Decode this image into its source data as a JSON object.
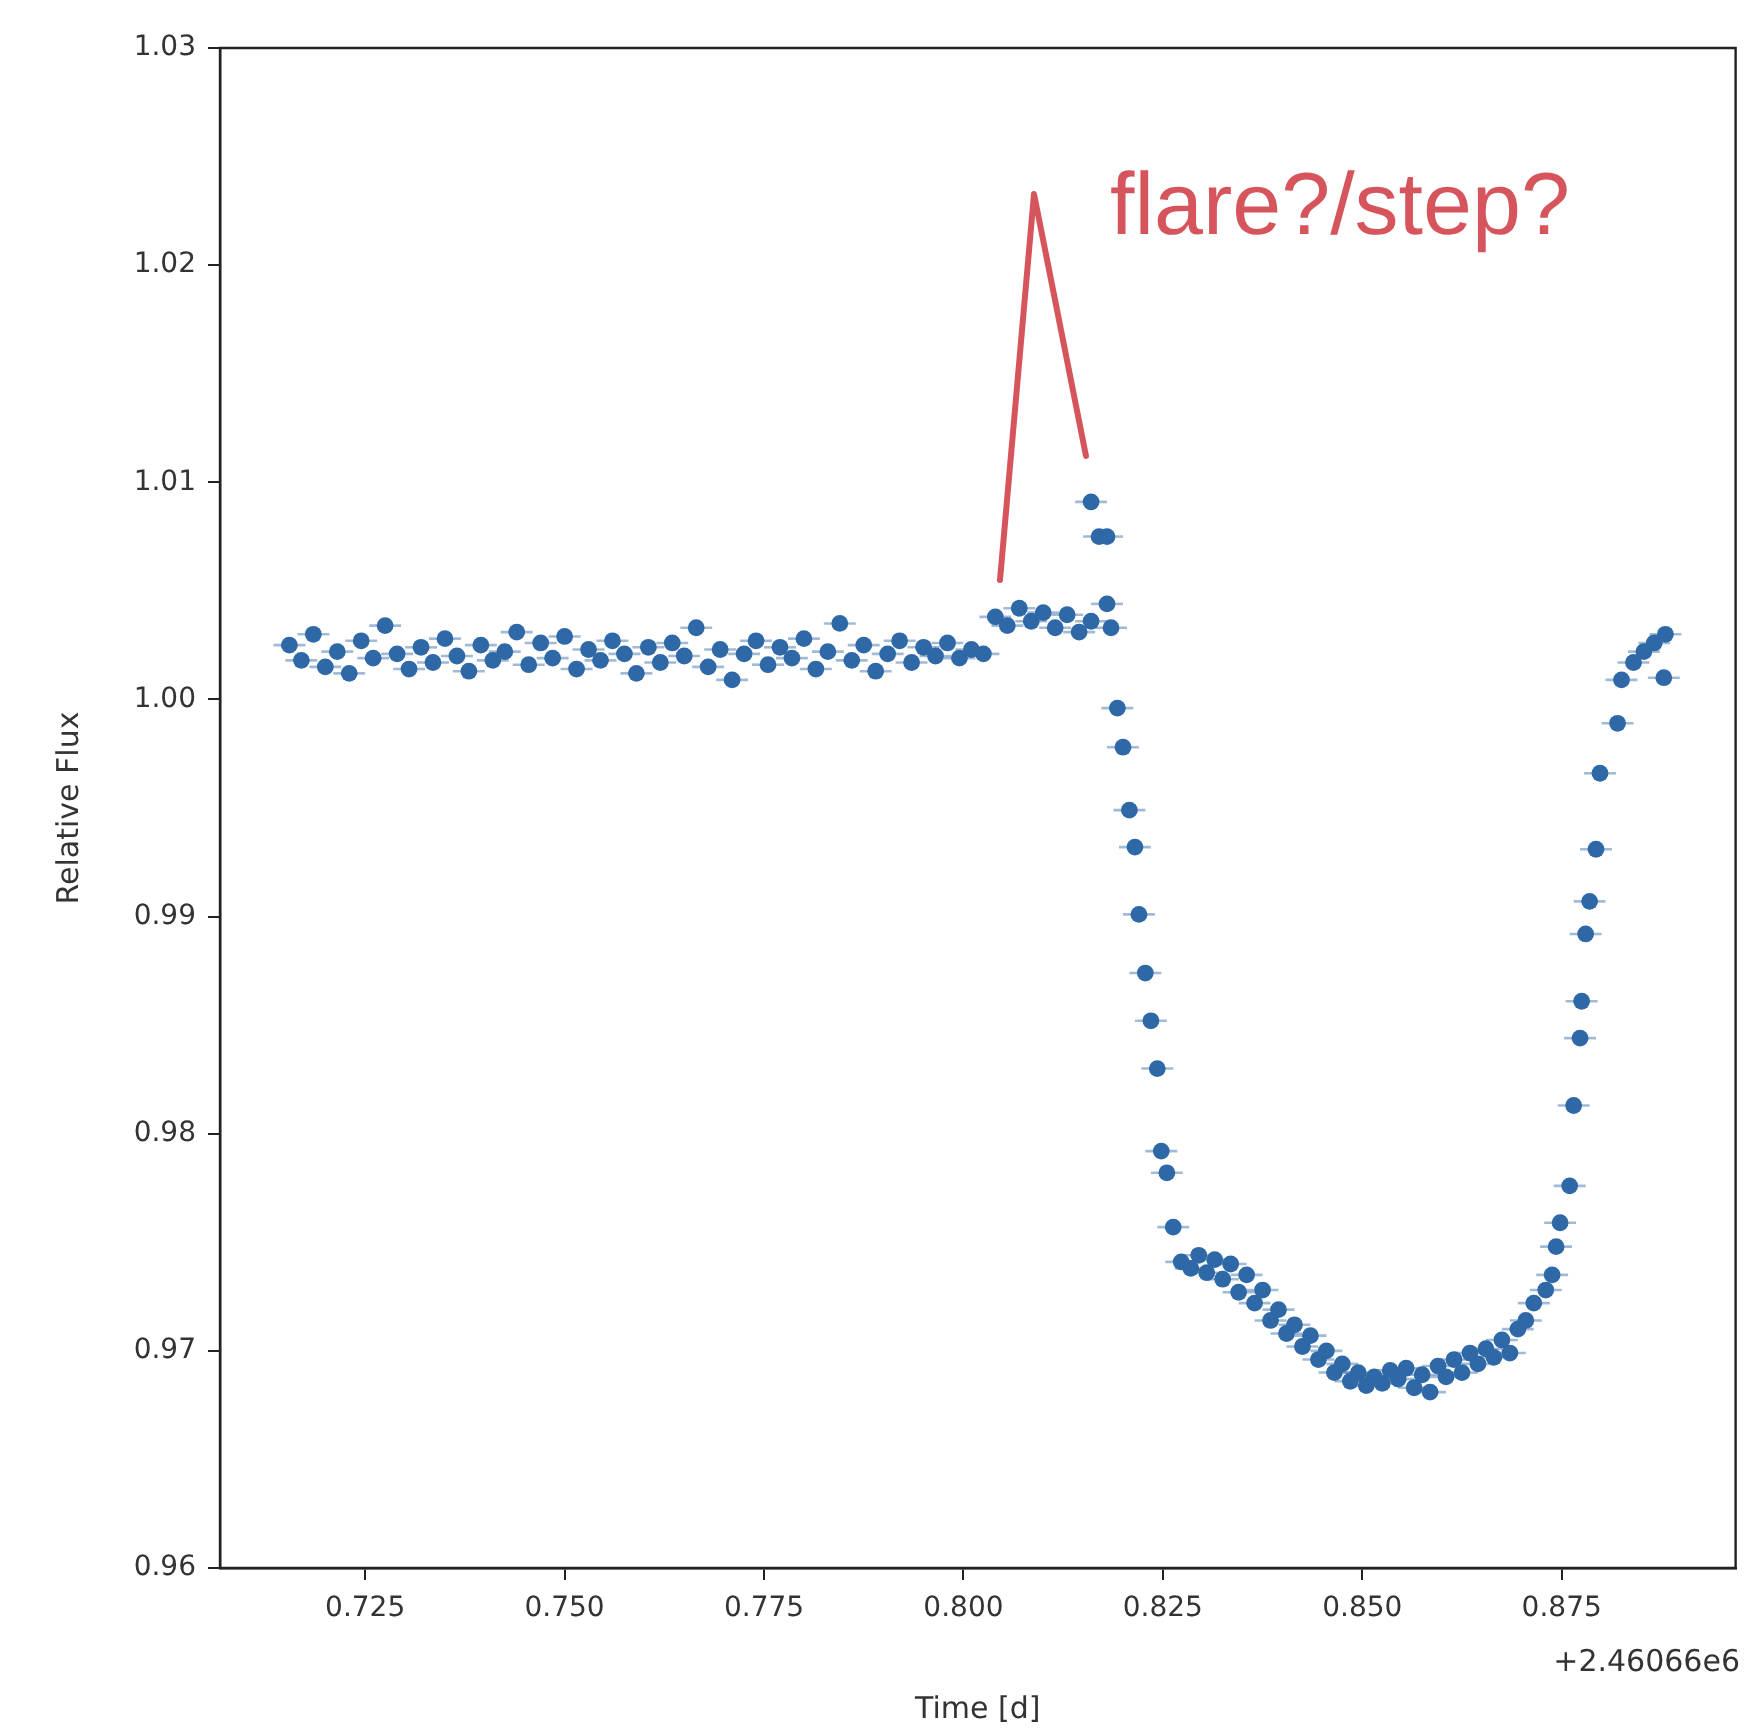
{
  "chart_data": {
    "type": "scatter",
    "xlabel": "Time [d]",
    "ylabel": "Relative Flux",
    "annotations": [
      "flare?/step?",
      "+2.46066e6"
    ],
    "xlim": [
      0.7068,
      0.8968
    ],
    "ylim": [
      0.96,
      1.03
    ],
    "xticks": [
      0.725,
      {
        "value": 0.75,
        "label": "0.750"
      },
      0.775,
      {
        "value": 0.8,
        "label": "0.800"
      },
      0.825,
      {
        "value": 0.85,
        "label": "0.850"
      },
      0.875
    ],
    "yticks": [
      0.96,
      0.97,
      0.98,
      0.99,
      {
        "value": 1,
        "label": "1.00"
      },
      1.01,
      1.02,
      1.03
    ],
    "grid": false,
    "legend": false,
    "marker": "circle",
    "series": [
      {
        "color": "#2f68a6",
        "x": [
          0.7155,
          0.717,
          0.7185,
          0.72,
          0.7215,
          0.723,
          0.7245,
          0.726,
          0.7275,
          0.729,
          0.7305,
          0.732,
          0.7335,
          0.735,
          0.7365,
          0.738,
          0.7395,
          0.741,
          0.7425,
          0.744,
          0.7455,
          0.747,
          0.7485,
          0.75,
          0.7515,
          0.753,
          0.7545,
          0.756,
          0.7575,
          0.759,
          0.7605,
          0.762,
          0.7635,
          0.765,
          0.7665,
          0.768,
          0.7695,
          0.771,
          0.7725,
          0.774,
          0.7755,
          0.777,
          0.7785,
          0.78,
          0.7815,
          0.783,
          0.7845,
          0.786,
          0.7875,
          0.789,
          0.7905,
          0.792,
          0.7935,
          0.795,
          0.7965,
          0.798,
          0.7995,
          0.801,
          0.8025,
          0.804,
          0.8055,
          0.807,
          0.8085,
          0.81,
          0.8115,
          0.813,
          0.8145,
          0.816,
          0.816,
          0.817,
          0.818,
          0.818,
          0.8185,
          0.8193,
          0.82,
          0.8208,
          0.8215,
          0.822,
          0.8228,
          0.8235,
          0.8243,
          0.8248,
          0.8255,
          0.8263,
          0.8273,
          0.8285,
          0.8295,
          0.8305,
          0.8315,
          0.8325,
          0.8335,
          0.8345,
          0.8355,
          0.8365,
          0.8375,
          0.8385,
          0.8395,
          0.8405,
          0.8415,
          0.8425,
          0.8435,
          0.8445,
          0.8455,
          0.8465,
          0.8475,
          0.8485,
          0.8495,
          0.8505,
          0.8515,
          0.8525,
          0.8535,
          0.8545,
          0.8555,
          0.8565,
          0.8575,
          0.8585,
          0.8595,
          0.8605,
          0.8615,
          0.8625,
          0.8635,
          0.8645,
          0.8655,
          0.8665,
          0.8675,
          0.8685,
          0.8695,
          0.8705,
          0.8715,
          0.873,
          0.8738,
          0.8743,
          0.8748,
          0.876,
          0.8765,
          0.8773,
          0.8775,
          0.878,
          0.8785,
          0.8793,
          0.8798,
          0.882,
          0.8825,
          0.884,
          0.8853,
          0.8866,
          0.888,
          0.8878
        ],
        "values": [
          1.0025,
          1.0018,
          1.003,
          1.0015,
          1.0022,
          1.0012,
          1.0027,
          1.0019,
          1.0034,
          1.0021,
          1.0014,
          1.0024,
          1.0017,
          1.0028,
          1.002,
          1.0013,
          1.0025,
          1.0018,
          1.0022,
          1.0031,
          1.0016,
          1.0026,
          1.0019,
          1.0029,
          1.0014,
          1.0023,
          1.0018,
          1.0027,
          1.0021,
          1.0012,
          1.0024,
          1.0017,
          1.0026,
          1.002,
          1.0033,
          1.0015,
          1.0023,
          1.0009,
          1.0021,
          1.0027,
          1.0016,
          1.0024,
          1.0019,
          1.0028,
          1.0014,
          1.0022,
          1.0035,
          1.0018,
          1.0025,
          1.0013,
          1.0021,
          1.0027,
          1.0017,
          1.0024,
          1.002,
          1.0026,
          1.0019,
          1.0023,
          1.0021,
          1.0038,
          1.0034,
          1.0042,
          1.0036,
          1.004,
          1.0033,
          1.0039,
          1.0031,
          1.0036,
          1.0091,
          1.0075,
          1.0075,
          1.0044,
          1.0033,
          0.9996,
          0.9978,
          0.9949,
          0.9932,
          0.9901,
          0.9874,
          0.9852,
          0.983,
          0.9792,
          0.9782,
          0.9757,
          0.9741,
          0.9738,
          0.9744,
          0.9736,
          0.9742,
          0.9733,
          0.974,
          0.9727,
          0.9735,
          0.9722,
          0.9728,
          0.9714,
          0.9719,
          0.9708,
          0.9712,
          0.9702,
          0.9707,
          0.9696,
          0.97,
          0.969,
          0.9694,
          0.9686,
          0.969,
          0.9684,
          0.9688,
          0.9685,
          0.9691,
          0.9687,
          0.9692,
          0.9683,
          0.9689,
          0.9681,
          0.9693,
          0.9688,
          0.9696,
          0.969,
          0.9699,
          0.9694,
          0.9701,
          0.9697,
          0.9705,
          0.9699,
          0.971,
          0.9714,
          0.9722,
          0.9728,
          0.9735,
          0.9748,
          0.9759,
          0.9776,
          0.9813,
          0.9844,
          0.9861,
          0.9892,
          0.9907,
          0.9931,
          0.9966,
          0.9989,
          1.0009,
          1.0017,
          1.0022,
          1.0026,
          1.003,
          1.001
        ],
        "xerrors": [
          0.002,
          0.002,
          0.002,
          0.002,
          0.002,
          0.002,
          0.002,
          0.002,
          0.002,
          0.002,
          0.002,
          0.002,
          0.002,
          0.002,
          0.002,
          0.002,
          0.002,
          0.002,
          0.002,
          0.002,
          0.002,
          0.002,
          0.002,
          0.002,
          0.002,
          0.002,
          0.002,
          0.002,
          0.002,
          0.002,
          0.002,
          0.002,
          0.002,
          0.002,
          0.002,
          0.002,
          0.002,
          0.002,
          0.002,
          0.002,
          0.002,
          0.002,
          0.002,
          0.002,
          0.002,
          0.002,
          0.002,
          0.002,
          0.002,
          0.002,
          0.002,
          0.002,
          0.002,
          0.002,
          0.002,
          0.002,
          0.002,
          0.002,
          0.002,
          0.002,
          0.002,
          0.002,
          0.002,
          0.002,
          0.002,
          0.002,
          0.002,
          0.002,
          0.002,
          0.002,
          0.002,
          0.002,
          0.002,
          0.002,
          0.002,
          0.002,
          0.002,
          0.002,
          0.002,
          0.002,
          0.002,
          0.002,
          0.002,
          0.002,
          0.002,
          0.002,
          0.002,
          0.002,
          0.002,
          0.002,
          0.002,
          0.002,
          0.002,
          0.002,
          0.002,
          0.002,
          0.002,
          0.002,
          0.002,
          0.002,
          0.002,
          0.002,
          0.002,
          0.002,
          0.002,
          0.002,
          0.002,
          0.002,
          0.002,
          0.002,
          0.002,
          0.002,
          0.002,
          0.002,
          0.002,
          0.002,
          0.002,
          0.002,
          0.002,
          0.002,
          0.002,
          0.002,
          0.002,
          0.002,
          0.002,
          0.002,
          0.002,
          0.002,
          0.002,
          0.002,
          0.002,
          0.002,
          0.002,
          0.002,
          0.002,
          0.002,
          0.002,
          0.002,
          0.002,
          0.002,
          0.002,
          0.002,
          0.002,
          0.002,
          0.002,
          0.002,
          0.002,
          0.002
        ]
      }
    ]
  }
}
